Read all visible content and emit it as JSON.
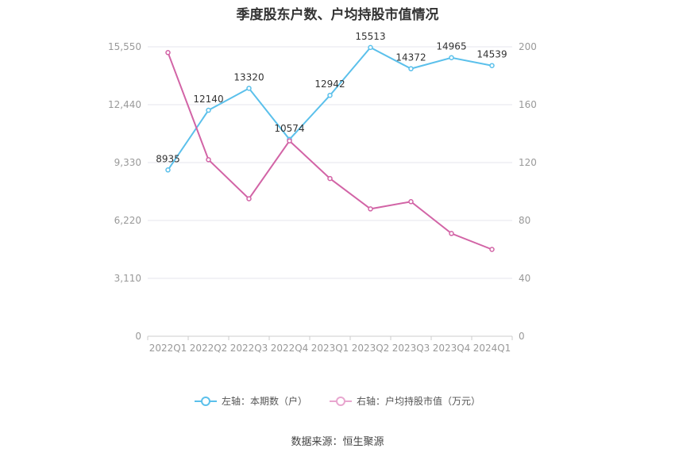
{
  "title": "季度股东户数、户均持股市值情况",
  "source": "数据来源：恒生聚源",
  "colors": {
    "left_series": "#5bc0eb",
    "right_series": "#d264a6",
    "grid": "#e6e6ee",
    "axis_text": "#999999"
  },
  "legend": {
    "left_label": "左轴：本期数（户）",
    "right_label": "右轴：户均持股市值（万元）"
  },
  "chart_data": {
    "type": "line",
    "categories": [
      "2022Q1",
      "2022Q2",
      "2022Q3",
      "2022Q4",
      "2023Q1",
      "2023Q2",
      "2023Q3",
      "2023Q4",
      "2024Q1"
    ],
    "series": [
      {
        "name": "左轴：本期数（户）",
        "axis": "left",
        "values": [
          8935,
          12140,
          13320,
          10574,
          12942,
          15513,
          14372,
          14965,
          14539
        ],
        "labels": [
          "8935",
          "12140",
          "13320",
          "10574",
          "12942",
          "15513",
          "14372",
          "14965",
          "14539"
        ]
      },
      {
        "name": "右轴：户均持股市值（万元）",
        "axis": "right",
        "values": [
          196,
          122,
          95,
          135,
          109,
          88,
          93,
          71,
          60
        ]
      }
    ],
    "left_axis": {
      "ticks": [
        0,
        3110,
        6220,
        9330,
        12440,
        15550
      ],
      "tick_labels": [
        "0",
        "3,110",
        "6,220",
        "9,330",
        "12,440",
        "15,550"
      ],
      "ylim": [
        0,
        15550
      ]
    },
    "right_axis": {
      "ticks": [
        0,
        40,
        80,
        120,
        160,
        200
      ],
      "tick_labels": [
        "0",
        "40",
        "80",
        "120",
        "160",
        "200"
      ],
      "ylim": [
        0,
        200
      ]
    },
    "grid": true,
    "legend_position": "bottom"
  }
}
